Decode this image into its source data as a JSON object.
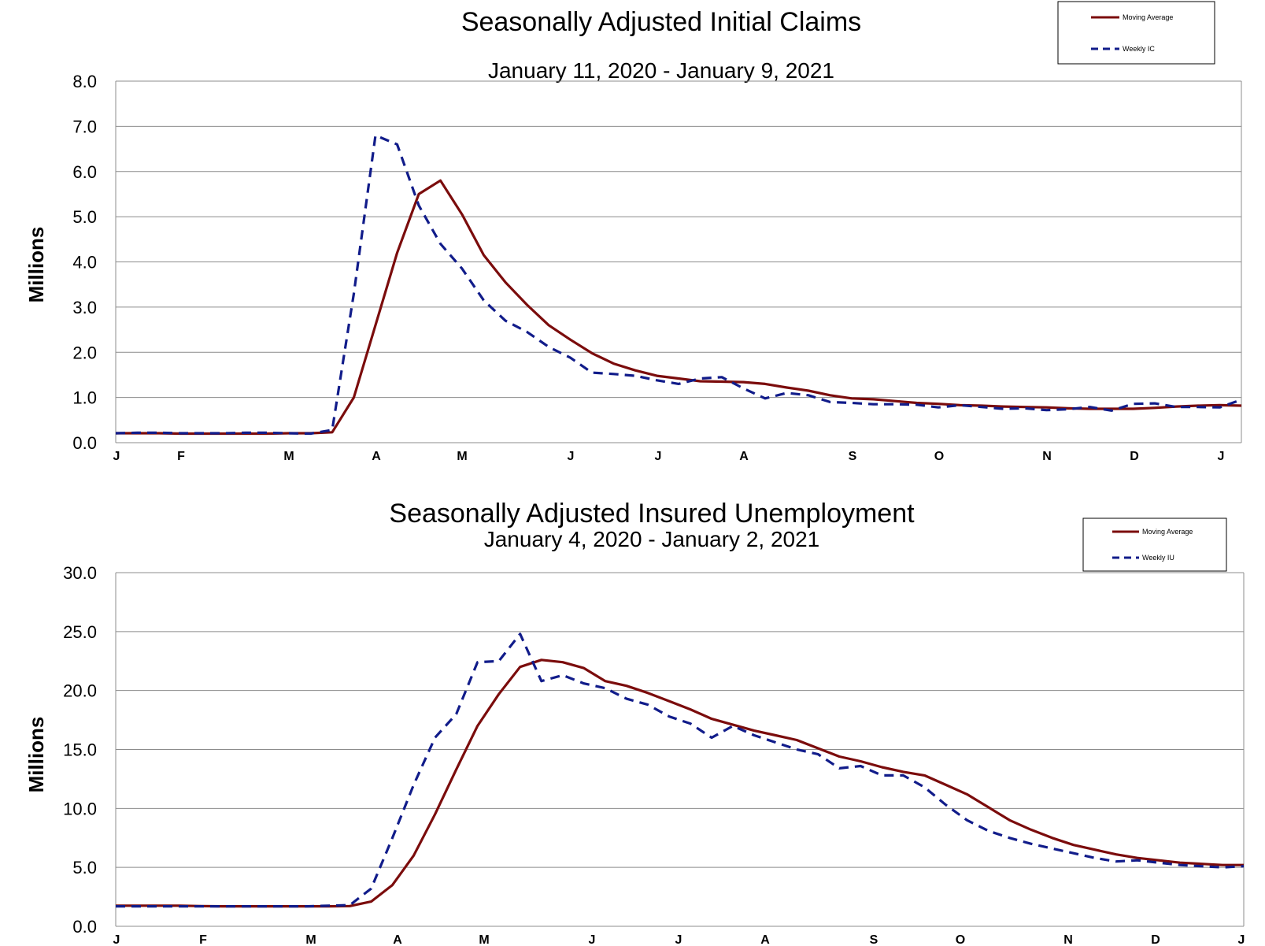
{
  "chart_data": [
    {
      "type": "line",
      "title": "Seasonally Adjusted Initial Claims",
      "subtitle": "January 11, 2020 - January 9, 2021",
      "ylabel": "Millions",
      "ylim": [
        0,
        8
      ],
      "yticks": [
        "0.0",
        "1.0",
        "2.0",
        "3.0",
        "4.0",
        "5.0",
        "6.0",
        "7.0",
        "8.0"
      ],
      "xticks": [
        "J",
        "F",
        "M",
        "A",
        "M",
        "J",
        "J",
        "A",
        "S",
        "O",
        "N",
        "D",
        "J"
      ],
      "grid": true,
      "legend_position": "top-right",
      "series": [
        {
          "name": "Moving Average",
          "color": "#7b0c0c",
          "style": "solid",
          "values": [
            0.21,
            0.21,
            0.21,
            0.2,
            0.2,
            0.2,
            0.2,
            0.2,
            0.21,
            0.21,
            0.23,
            1.0,
            2.6,
            4.2,
            5.5,
            5.8,
            5.05,
            4.15,
            3.55,
            3.05,
            2.6,
            2.28,
            1.98,
            1.75,
            1.6,
            1.48,
            1.42,
            1.36,
            1.35,
            1.34,
            1.3,
            1.22,
            1.15,
            1.05,
            0.98,
            0.96,
            0.92,
            0.88,
            0.86,
            0.83,
            0.82,
            0.8,
            0.79,
            0.78,
            0.76,
            0.75,
            0.75,
            0.75,
            0.77,
            0.8,
            0.82,
            0.83,
            0.82
          ]
        },
        {
          "name": "Weekly IC",
          "color": "#111c8a",
          "style": "dashed",
          "values": [
            0.21,
            0.22,
            0.22,
            0.21,
            0.21,
            0.21,
            0.22,
            0.22,
            0.21,
            0.2,
            0.28,
            3.3,
            6.8,
            6.6,
            5.25,
            4.4,
            3.85,
            3.15,
            2.7,
            2.45,
            2.12,
            1.88,
            1.55,
            1.52,
            1.48,
            1.38,
            1.3,
            1.42,
            1.45,
            1.2,
            0.98,
            1.1,
            1.05,
            0.9,
            0.88,
            0.85,
            0.85,
            0.84,
            0.78,
            0.83,
            0.79,
            0.75,
            0.76,
            0.72,
            0.74,
            0.79,
            0.71,
            0.86,
            0.87,
            0.79,
            0.79,
            0.78,
            0.95
          ]
        }
      ]
    },
    {
      "type": "line",
      "title": "Seasonally Adjusted Insured Unemployment",
      "subtitle": "January 4, 2020 - January 2, 2021",
      "ylabel": "Millions",
      "ylim": [
        0,
        30
      ],
      "yticks": [
        "0.0",
        "5.0",
        "10.0",
        "15.0",
        "20.0",
        "25.0",
        "30.0"
      ],
      "xticks": [
        "J",
        "F",
        "M",
        "A",
        "M",
        "J",
        "J",
        "A",
        "S",
        "O",
        "N",
        "D",
        "J"
      ],
      "grid": true,
      "legend_position": "top-right",
      "series": [
        {
          "name": "Moving Average",
          "color": "#7b0c0c",
          "style": "solid",
          "values": [
            1.75,
            1.75,
            1.75,
            1.75,
            1.72,
            1.7,
            1.7,
            1.7,
            1.7,
            1.7,
            1.7,
            1.72,
            2.1,
            3.5,
            6.0,
            9.5,
            13.3,
            17.0,
            19.7,
            22.0,
            22.6,
            22.4,
            21.9,
            20.8,
            20.4,
            19.8,
            19.1,
            18.4,
            17.6,
            17.1,
            16.6,
            16.2,
            15.8,
            15.1,
            14.4,
            14.0,
            13.5,
            13.1,
            12.8,
            12.0,
            11.2,
            10.1,
            9.0,
            8.2,
            7.5,
            6.9,
            6.5,
            6.1,
            5.8,
            5.6,
            5.4,
            5.3,
            5.2,
            5.2
          ]
        },
        {
          "name": "Weekly IU",
          "color": "#111c8a",
          "style": "dashed",
          "values": [
            1.7,
            1.7,
            1.7,
            1.7,
            1.7,
            1.7,
            1.7,
            1.7,
            1.7,
            1.7,
            1.75,
            1.8,
            3.2,
            7.5,
            12.0,
            16.0,
            18.0,
            22.4,
            22.5,
            24.8,
            20.8,
            21.3,
            20.6,
            20.2,
            19.3,
            18.8,
            17.8,
            17.2,
            16.0,
            17.0,
            16.2,
            15.6,
            15.0,
            14.6,
            13.4,
            13.6,
            12.8,
            12.8,
            11.8,
            10.3,
            9.0,
            8.1,
            7.5,
            7.0,
            6.6,
            6.2,
            5.8,
            5.5,
            5.6,
            5.4,
            5.2,
            5.1,
            5.0,
            5.1
          ]
        }
      ]
    }
  ]
}
